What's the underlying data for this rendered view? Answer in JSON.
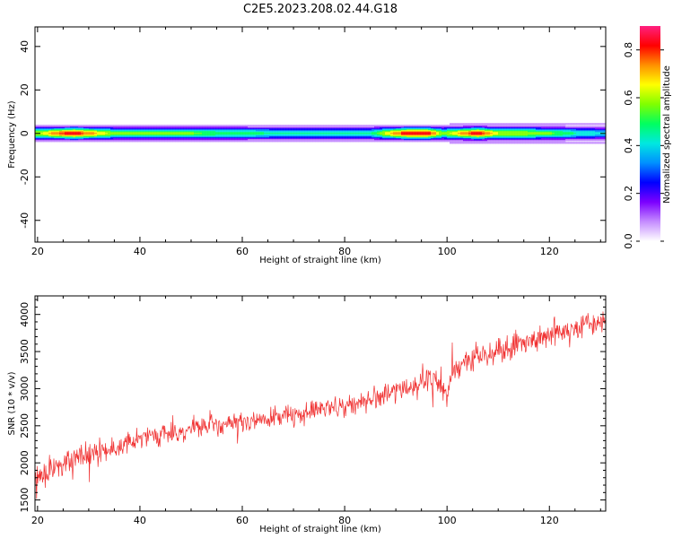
{
  "title": "C2E5.2023.208.02.44.G18",
  "chart_data": [
    {
      "type": "heatmap",
      "xlabel": "Height of straight line (km)",
      "ylabel": "Frequency (Hz)",
      "xlim": [
        19.5,
        131
      ],
      "ylim": [
        -50,
        49
      ],
      "xticks": [
        20,
        40,
        60,
        80,
        100,
        120
      ],
      "yticks": [
        -40,
        -20,
        0,
        20,
        40
      ],
      "ytick_labels": [
        "-40",
        "-20",
        "0",
        "20",
        "40"
      ],
      "band_center_hz": 0,
      "band_profile": {
        "x_km": [
          20,
          23,
          27,
          31,
          35,
          40,
          45,
          50,
          55,
          60,
          65,
          70,
          75,
          80,
          85,
          88,
          92,
          96,
          99,
          100,
          103,
          106,
          110,
          115,
          120,
          125,
          130
        ],
        "peak_amplitude": [
          0.6,
          0.75,
          0.85,
          0.7,
          0.55,
          0.55,
          0.55,
          0.55,
          0.5,
          0.5,
          0.45,
          0.45,
          0.45,
          0.45,
          0.45,
          0.65,
          0.85,
          0.85,
          0.55,
          0.6,
          0.75,
          0.85,
          0.6,
          0.6,
          0.55,
          0.45,
          0.4
        ]
      },
      "colorbar": {
        "label": "Normalized spectral amplitude",
        "ticks": [
          0.0,
          0.2,
          0.4,
          0.6,
          0.8
        ],
        "tick_labels": [
          "0.0",
          "0.2",
          "0.4",
          "0.6",
          "0.8"
        ],
        "range": [
          0,
          0.9
        ],
        "colors": [
          "#ffffff",
          "#c58cff",
          "#7c00ff",
          "#0000ff",
          "#0090ff",
          "#00e8e0",
          "#00ff60",
          "#80ff00",
          "#ffff00",
          "#ff9000",
          "#ff0000",
          "#ff2080"
        ]
      }
    },
    {
      "type": "line",
      "xlabel": "Height of straight line (km)",
      "ylabel": "SNR (10 * v/v)",
      "xlim": [
        19.5,
        131
      ],
      "ylim": [
        1350,
        4250
      ],
      "xticks": [
        20,
        40,
        60,
        80,
        100,
        120
      ],
      "yticks": [
        1500,
        2000,
        2500,
        3000,
        3500,
        4000
      ],
      "series": [
        {
          "color": "#f03030",
          "x": [
            19.5,
            21,
            23,
            25,
            27,
            29,
            31,
            33,
            35,
            37,
            39,
            41,
            43,
            45,
            47,
            49,
            51,
            53,
            55,
            57,
            59,
            61,
            63,
            65,
            67,
            69,
            71,
            73,
            75,
            77,
            79,
            81,
            83,
            85,
            87,
            89,
            91,
            93,
            95,
            97,
            99,
            100,
            100.7,
            102,
            104,
            106,
            108,
            110,
            112,
            114,
            116,
            118,
            120,
            122,
            124,
            126,
            128,
            130,
            131
          ],
          "y": [
            1750,
            1850,
            1930,
            2000,
            2040,
            2090,
            2150,
            2180,
            2210,
            2260,
            2300,
            2330,
            2360,
            2390,
            2410,
            2440,
            2460,
            2490,
            2500,
            2520,
            2530,
            2560,
            2580,
            2600,
            2620,
            2650,
            2660,
            2690,
            2710,
            2730,
            2760,
            2790,
            2820,
            2860,
            2900,
            2950,
            2990,
            3040,
            3080,
            3100,
            3070,
            2800,
            3200,
            3320,
            3380,
            3430,
            3470,
            3520,
            3570,
            3620,
            3650,
            3690,
            3730,
            3770,
            3790,
            3830,
            3870,
            3900,
            3910
          ],
          "noise_amplitude": [
            260,
            250,
            240,
            230,
            220,
            210,
            205,
            200,
            200,
            200,
            195,
            195,
            190,
            190,
            190,
            185,
            185,
            185,
            180,
            180,
            180,
            180,
            180,
            180,
            180,
            180,
            180,
            185,
            185,
            190,
            190,
            195,
            200,
            205,
            210,
            220,
            230,
            240,
            250,
            250,
            240,
            230,
            230,
            220,
            215,
            210,
            210,
            210,
            210,
            215,
            215,
            220,
            220,
            220,
            220,
            225,
            225,
            230,
            230
          ]
        }
      ]
    }
  ]
}
